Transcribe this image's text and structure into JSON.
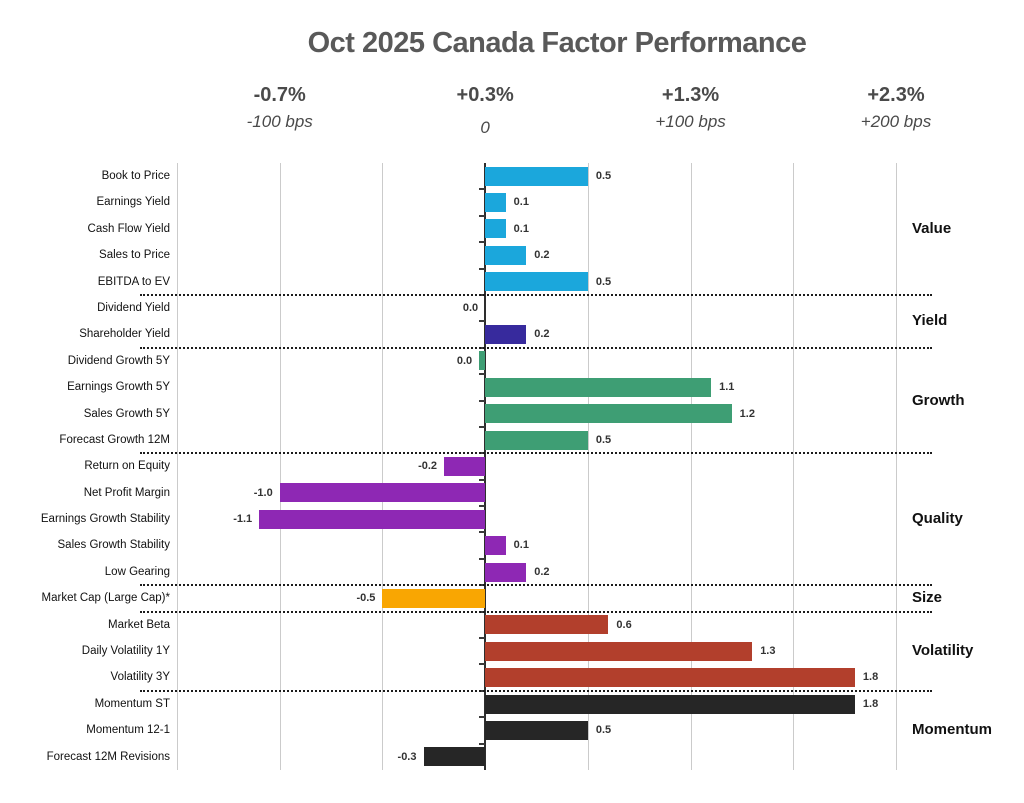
{
  "title": "Oct 2025 Canada Factor Performance",
  "axis": {
    "headers": [
      {
        "pct": "-0.7%",
        "bps": "-100 bps",
        "value": -1.0,
        "dy": 0
      },
      {
        "pct": "+0.3%",
        "bps": "0",
        "value": 0.0,
        "dy": 6
      },
      {
        "pct": "+1.3%",
        "bps": "+100 bps",
        "value": 1.0,
        "dy": 0
      },
      {
        "pct": "+2.3%",
        "bps": "+200 bps",
        "value": 2.0,
        "dy": 0
      }
    ],
    "min": -1.5,
    "max": 2.0,
    "gridline_step": 0.5
  },
  "chart_data": {
    "type": "bar",
    "orientation": "horizontal",
    "title": "Oct 2025 Canada Factor Performance",
    "xlim": [
      -1.5,
      2.0
    ],
    "grid": true,
    "groups": [
      {
        "name": "Value",
        "color": "#1ba7dc",
        "factors": [
          {
            "label": "Book to Price",
            "value": 0.5,
            "display": "0.5"
          },
          {
            "label": "Earnings Yield",
            "value": 0.1,
            "display": "0.1"
          },
          {
            "label": "Cash Flow Yield",
            "value": 0.1,
            "display": "0.1"
          },
          {
            "label": "Sales to Price",
            "value": 0.2,
            "display": "0.2"
          },
          {
            "label": "EBITDA to EV",
            "value": 0.5,
            "display": "0.5"
          }
        ]
      },
      {
        "name": "Yield",
        "color": "#372a9d",
        "factors": [
          {
            "label": "Dividend Yield",
            "value": 0.0,
            "display": "0.0"
          },
          {
            "label": "Shareholder Yield",
            "value": 0.2,
            "display": "0.2"
          }
        ]
      },
      {
        "name": "Growth",
        "color": "#3e9e74",
        "factors": [
          {
            "label": "Dividend Growth 5Y",
            "value": 0.0,
            "display": "0.0",
            "tiny_bar": true
          },
          {
            "label": "Earnings Growth 5Y",
            "value": 1.1,
            "display": "1.1"
          },
          {
            "label": "Sales Growth 5Y",
            "value": 1.2,
            "display": "1.2"
          },
          {
            "label": "Forecast Growth 12M",
            "value": 0.5,
            "display": "0.5"
          }
        ]
      },
      {
        "name": "Quality",
        "color": "#8e28b4",
        "factors": [
          {
            "label": "Return on Equity",
            "value": -0.2,
            "display": "-0.2"
          },
          {
            "label": "Net Profit Margin",
            "value": -1.0,
            "display": "-1.0"
          },
          {
            "label": "Earnings Growth Stability",
            "value": -1.1,
            "display": "-1.1"
          },
          {
            "label": "Sales Growth Stability",
            "value": 0.1,
            "display": "0.1"
          },
          {
            "label": "Low Gearing",
            "value": 0.2,
            "display": "0.2"
          }
        ]
      },
      {
        "name": "Size",
        "color": "#f9a602",
        "factors": [
          {
            "label": "Market Cap (Large Cap)*",
            "value": -0.5,
            "display": "-0.5"
          }
        ]
      },
      {
        "name": "Volatility",
        "color": "#b23f2c",
        "factors": [
          {
            "label": "Market Beta",
            "value": 0.6,
            "display": "0.6"
          },
          {
            "label": "Daily Volatility 1Y",
            "value": 1.3,
            "display": "1.3"
          },
          {
            "label": "Volatility 3Y",
            "value": 1.8,
            "display": "1.8"
          }
        ]
      },
      {
        "name": "Momentum",
        "color": "#262626",
        "factors": [
          {
            "label": "Momentum ST",
            "value": 1.8,
            "display": "1.8"
          },
          {
            "label": "Momentum 12-1",
            "value": 0.5,
            "display": "0.5"
          },
          {
            "label": "Forecast 12M Revisions",
            "value": -0.3,
            "display": "-0.3"
          }
        ]
      }
    ]
  }
}
